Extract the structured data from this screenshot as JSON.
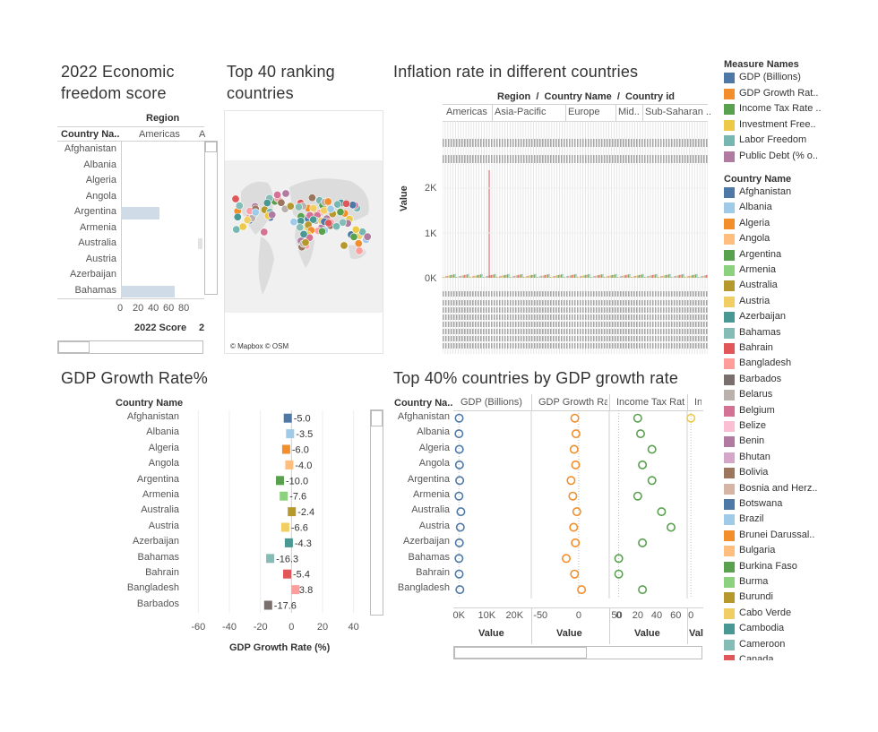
{
  "panel1": {
    "title_line1": "2022 Economic",
    "title_line2": "freedom score",
    "region_header": "Region",
    "region_value": "Americas",
    "region_next": "A",
    "row_header": "Country Na..",
    "countries": [
      "Afghanistan",
      "Albania",
      "Algeria",
      "Angola",
      "Argentina",
      "Armenia",
      "Australia",
      "Austria",
      "Azerbaijan",
      "Bahamas"
    ],
    "ticks": [
      "0",
      "20",
      "40",
      "60",
      "80"
    ],
    "axis_title": "2022 Score",
    "axis_next": "2",
    "bar_color": "#cfdbe6",
    "bars": [
      null,
      null,
      null,
      null,
      50.1,
      null,
      null,
      null,
      null,
      70.3
    ]
  },
  "panel2": {
    "title_line1": "Top 40 ranking",
    "title_line2": "countries",
    "attribution": "© Mapbox © OSM"
  },
  "panel3": {
    "title": "Inflation rate in different countries",
    "header": "Region  /  Country Name  /  Country id",
    "regions": [
      "Americas",
      "Asia-Pacific",
      "Europe",
      "Mid..",
      "Sub-Saharan .."
    ],
    "yaxis_title": "Value",
    "yticks": [
      "2K",
      "1K",
      "0K"
    ]
  },
  "panel4": {
    "title": "GDP Growth Rate%",
    "row_header": "Country Name",
    "axis_title": "GDP Growth Rate (%)",
    "ticks": [
      "-60",
      "-40",
      "-20",
      "0",
      "20",
      "40"
    ],
    "rows": [
      {
        "name": "Afghanistan",
        "value": -5.0,
        "label": "-5.0",
        "color": "#4e79a7"
      },
      {
        "name": "Albania",
        "value": -3.5,
        "label": "-3.5",
        "color": "#a0cbe8"
      },
      {
        "name": "Algeria",
        "value": -6.0,
        "label": "-6.0",
        "color": "#f28e2b"
      },
      {
        "name": "Angola",
        "value": -4.0,
        "label": "-4.0",
        "color": "#ffbe7d"
      },
      {
        "name": "Argentina",
        "value": -10.0,
        "label": "-10.0",
        "color": "#59a14f"
      },
      {
        "name": "Armenia",
        "value": -7.6,
        "label": "-7.6",
        "color": "#8cd17d"
      },
      {
        "name": "Australia",
        "value": -2.4,
        "label": "-2.4",
        "color": "#b6992d"
      },
      {
        "name": "Austria",
        "value": -6.6,
        "label": "-6.6",
        "color": "#f1ce63"
      },
      {
        "name": "Azerbaijan",
        "value": -4.3,
        "label": "-4.3",
        "color": "#499894"
      },
      {
        "name": "Bahamas",
        "value": -16.3,
        "label": "-16.3",
        "color": "#86bcb6"
      },
      {
        "name": "Bahrain",
        "value": -5.4,
        "label": "-5.4",
        "color": "#e15759"
      },
      {
        "name": "Bangladesh",
        "value": 3.8,
        "label": "3.8",
        "color": "#ff9d9a"
      },
      {
        "name": "Barbados",
        "value": -17.6,
        "label": "-17.6",
        "color": "#79706e"
      }
    ]
  },
  "panel5": {
    "title": "Top 40% countries by GDP growth rate",
    "row_header": "Country Na..",
    "columns": [
      "GDP (Billions)",
      "GDP Growth Ra..",
      "Income Tax Rat..",
      "Inv.."
    ],
    "col_ticks": [
      [
        "0K",
        "10K",
        "20K"
      ],
      [
        "-50",
        "0",
        "50"
      ],
      [
        "0",
        "20",
        "40",
        "60"
      ],
      [
        "0"
      ]
    ],
    "axis_title": "Value",
    "axis_title_last": "Val",
    "countries": [
      "Afghanistan",
      "Albania",
      "Algeria",
      "Angola",
      "Argentina",
      "Armenia",
      "Australia",
      "Austria",
      "Azerbaijan",
      "Bahamas",
      "Bahrain",
      "Bangladesh"
    ],
    "gdp_billions": [
      80,
      40,
      160,
      200,
      280,
      40,
      700,
      500,
      160,
      40,
      80,
      340
    ],
    "gdp_growth": [
      -5.0,
      -3.5,
      -6.0,
      -4.0,
      -10.0,
      -7.6,
      -2.4,
      -6.6,
      -4.3,
      -16.3,
      -5.4,
      3.8
    ],
    "income_tax": [
      20,
      23,
      35,
      25,
      35,
      20,
      45,
      55,
      25,
      0,
      0,
      25
    ],
    "investment_freedom": [
      0
    ]
  },
  "legend": {
    "measure_title": "Measure Names",
    "measures": [
      {
        "label": "GDP (Billions)",
        "color": "#4e79a7"
      },
      {
        "label": "GDP Growth Rat..",
        "color": "#f28e2b"
      },
      {
        "label": "Income Tax Rate ..",
        "color": "#59a14f"
      },
      {
        "label": "Investment Free..",
        "color": "#edc948"
      },
      {
        "label": "Labor Freedom",
        "color": "#76b7b2"
      },
      {
        "label": "Public Debt (% o..",
        "color": "#b07aa1"
      }
    ],
    "country_title": "Country Name",
    "countries": [
      {
        "label": "Afghanistan",
        "color": "#4e79a7"
      },
      {
        "label": "Albania",
        "color": "#a0cbe8"
      },
      {
        "label": "Algeria",
        "color": "#f28e2b"
      },
      {
        "label": "Angola",
        "color": "#ffbe7d"
      },
      {
        "label": "Argentina",
        "color": "#59a14f"
      },
      {
        "label": "Armenia",
        "color": "#8cd17d"
      },
      {
        "label": "Australia",
        "color": "#b6992d"
      },
      {
        "label": "Austria",
        "color": "#f1ce63"
      },
      {
        "label": "Azerbaijan",
        "color": "#499894"
      },
      {
        "label": "Bahamas",
        "color": "#86bcb6"
      },
      {
        "label": "Bahrain",
        "color": "#e15759"
      },
      {
        "label": "Bangladesh",
        "color": "#ff9d9a"
      },
      {
        "label": "Barbados",
        "color": "#79706e"
      },
      {
        "label": "Belarus",
        "color": "#bab0ac"
      },
      {
        "label": "Belgium",
        "color": "#d37295"
      },
      {
        "label": "Belize",
        "color": "#fabfd2"
      },
      {
        "label": "Benin",
        "color": "#b07aa1"
      },
      {
        "label": "Bhutan",
        "color": "#d4a6c8"
      },
      {
        "label": "Bolivia",
        "color": "#9d7660"
      },
      {
        "label": "Bosnia and Herz..",
        "color": "#d7b5a6"
      },
      {
        "label": "Botswana",
        "color": "#4e79a7"
      },
      {
        "label": "Brazil",
        "color": "#a0cbe8"
      },
      {
        "label": "Brunei Darussal..",
        "color": "#f28e2b"
      },
      {
        "label": "Bulgaria",
        "color": "#ffbe7d"
      },
      {
        "label": "Burkina Faso",
        "color": "#59a14f"
      },
      {
        "label": "Burma",
        "color": "#8cd17d"
      },
      {
        "label": "Burundi",
        "color": "#b6992d"
      },
      {
        "label": "Cabo Verde",
        "color": "#f1ce63"
      },
      {
        "label": "Cambodia",
        "color": "#499894"
      },
      {
        "label": "Cameroon",
        "color": "#86bcb6"
      },
      {
        "label": "Canada",
        "color": "#e15759"
      }
    ]
  }
}
